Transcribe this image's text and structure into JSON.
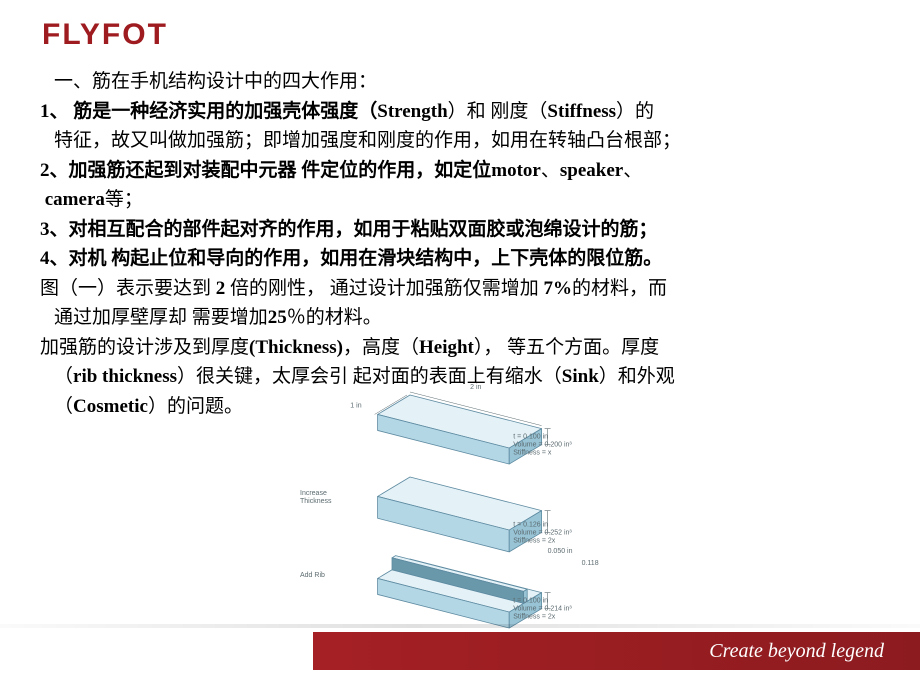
{
  "logo_text": "FLYFOT",
  "heading": "一、筋在手机结构设计中的四大作用：",
  "para1_a": "1、 筋是一种经济实用的加强壳体强度（",
  "para1_b": "Strength",
  "para1_c": "）和 刚度（",
  "para1_d": "Stiffness",
  "para1_e": "）的",
  "para1_line2": "特征，故又叫做加强筋；即增加强度和刚度的作用，如用在转轴凸台根部；",
  "para2_a": "2、加强筋还起到对装配中元器 件定位的作用，如定位",
  "para2_b": "motor",
  "para2_c": "、",
  "para2_d": "speaker",
  "para2_e": "、",
  "para2_line2a": "camera",
  "para2_line2b": "等；",
  "para3": "3、对相互配合的部件起对齐的作用，如用于粘贴双面胶或泡绵设计的筋；",
  "para4": "4、对机 构起止位和导向的作用，如用在滑块结构中，上下壳体的限位筋。",
  "fig_a": "图（一）表示要达到 ",
  "fig_b": "2 ",
  "fig_c": "倍的刚性， 通过设计加强筋仅需增加 ",
  "fig_d": "7%",
  "fig_e": "的材料，而",
  "fig_line2a": "通过加厚壁厚却 需要增加",
  "fig_line2b": "25",
  "fig_line2c": "％的材料。",
  "design_a": "加强筋的设计涉及到厚度",
  "design_b": "(Thickness)",
  "design_c": "，高度（",
  "design_d": "Height",
  "design_e": "）， 等五个方面。厚度",
  "design_line2a": "（",
  "design_line2b": "rib thickness",
  "design_line2c": "）很关键，太厚会引 起对面的表面上有缩水（",
  "design_line2d": "Sink",
  "design_line2e": "）和外观",
  "design_line3a": "（",
  "design_line3b": "Cosmetic",
  "design_line3c": "）的问题。",
  "footer": "Create beyond legend",
  "diagram": {
    "plates": [
      {
        "idx": 0,
        "top_label": "2 in",
        "side_label": "1 in",
        "caption1": "t = 0.100 in",
        "caption2": "Volume = 0.200 in³",
        "caption3": "Stiffness = x",
        "thick_ratio": 0.22,
        "rib": false,
        "extra_label_left": null
      },
      {
        "idx": 1,
        "top_label": null,
        "side_label": null,
        "caption1": "t = 0.126 in",
        "caption2": "Volume = 0.252 in³",
        "caption3": "Stiffness = 2x",
        "thick_ratio": 0.3,
        "rib": false,
        "extra_label_left": "Increase\nThickness"
      },
      {
        "idx": 2,
        "top_label": null,
        "side_label": null,
        "caption1": "t = 0.100 in",
        "caption2": "Volume = 0.214 in³",
        "caption3": "Stiffness = 2x",
        "thick_ratio": 0.22,
        "rib": true,
        "rib_label": "0.050 in",
        "rib_h_label": "0.118 in",
        "extra_label_left": "Add Rib"
      }
    ],
    "colors": {
      "face": "#b4d7e6",
      "top": "#e4f2f8",
      "side": "#98c4d6",
      "edge": "#5d8aa0",
      "rib_face": "#6a98ab",
      "label": "#5c6b70",
      "label_fontsize": 7
    }
  }
}
